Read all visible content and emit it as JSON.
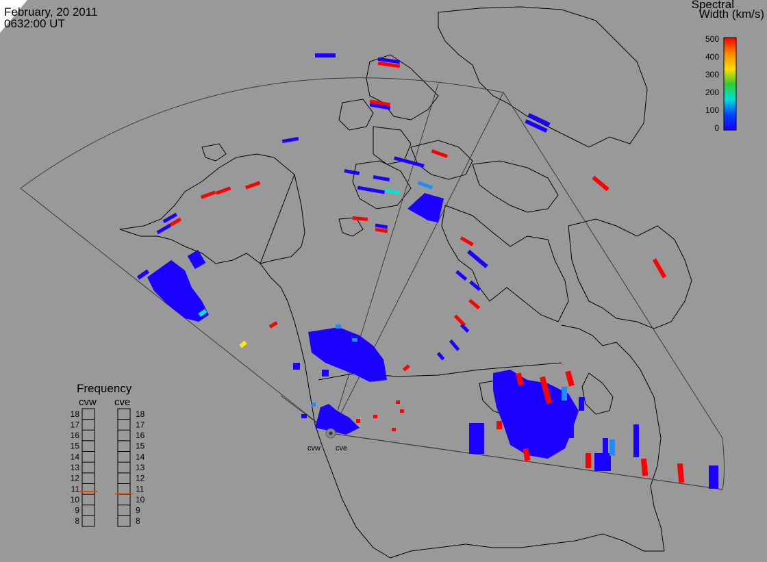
{
  "header": {
    "date": "February, 20 2011",
    "time": "0632:00 UT"
  },
  "colorbar": {
    "title_line1": "Spectral",
    "title_line2": "Width (km/s)",
    "ticks": [
      "500",
      "400",
      "300",
      "200",
      "100",
      "0"
    ],
    "colors": [
      "#ff0000",
      "#ff8800",
      "#ffdd00",
      "#33cc33",
      "#00dddd",
      "#0044ff",
      "#1a00ff"
    ]
  },
  "frequency_panel": {
    "title": "Frequency",
    "left_label": "cvw",
    "right_label": "cve",
    "ticks": [
      "18",
      "17",
      "16",
      "15",
      "14",
      "13",
      "12",
      "11",
      "10",
      "9",
      "8"
    ],
    "cvw_value": 10.75,
    "cve_value": 10.55,
    "marker_color": "#e64a00"
  },
  "radar": {
    "site_labels": [
      "cvw",
      "cve"
    ]
  },
  "colors": {
    "background": "#999999",
    "scatter_blue": "#1a00ff",
    "scatter_red": "#ff0000",
    "scatter_cyan": "#00e5cc",
    "scatter_lightblue": "#1f8cff",
    "scatter_yellow": "#ffee00"
  }
}
